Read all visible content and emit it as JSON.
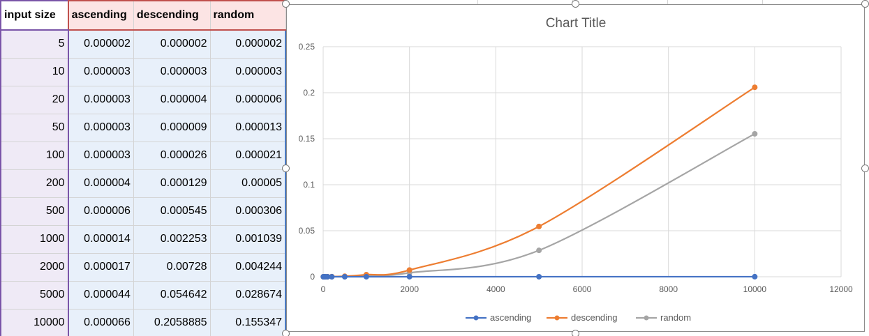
{
  "table": {
    "headers": [
      "input  size",
      "ascending",
      "descending",
      "random"
    ],
    "rows": [
      [
        "5",
        "0.000002",
        "0.000002",
        "0.000002"
      ],
      [
        "10",
        "0.000003",
        "0.000003",
        "0.000003"
      ],
      [
        "20",
        "0.000003",
        "0.000004",
        "0.000006"
      ],
      [
        "50",
        "0.000003",
        "0.000009",
        "0.000013"
      ],
      [
        "100",
        "0.000003",
        "0.000026",
        "0.000021"
      ],
      [
        "200",
        "0.000004",
        "0.000129",
        "0.00005"
      ],
      [
        "500",
        "0.000006",
        "0.000545",
        "0.000306"
      ],
      [
        "1000",
        "0.000014",
        "0.002253",
        "0.001039"
      ],
      [
        "2000",
        "0.000017",
        "0.00728",
        "0.004244"
      ],
      [
        "5000",
        "0.000044",
        "0.054642",
        "0.028674"
      ],
      [
        "10000",
        "0.000066",
        "0.2058885",
        "0.155347"
      ]
    ]
  },
  "chart_data": {
    "type": "scatter",
    "title": "Chart Title",
    "x": [
      5,
      10,
      20,
      50,
      100,
      200,
      500,
      1000,
      2000,
      5000,
      10000
    ],
    "series": [
      {
        "name": "ascending",
        "color": "#4472c4",
        "values": [
          2e-06,
          3e-06,
          3e-06,
          3e-06,
          3e-06,
          4e-06,
          6e-06,
          1.4e-05,
          1.7e-05,
          4.4e-05,
          6.6e-05
        ]
      },
      {
        "name": "descending",
        "color": "#ed7d31",
        "values": [
          2e-06,
          3e-06,
          4e-06,
          9e-06,
          2.6e-05,
          0.000129,
          0.000545,
          0.002253,
          0.00728,
          0.054642,
          0.2058885
        ]
      },
      {
        "name": "random",
        "color": "#a5a5a5",
        "values": [
          2e-06,
          3e-06,
          6e-06,
          1.3e-05,
          2.1e-05,
          5e-05,
          0.000306,
          0.001039,
          0.004244,
          0.028674,
          0.155347
        ]
      }
    ],
    "xlim": [
      0,
      12000
    ],
    "ylim": [
      0,
      0.25
    ],
    "xticks": [
      0,
      2000,
      4000,
      6000,
      8000,
      10000,
      12000
    ],
    "yticks": [
      0,
      0.05,
      0.1,
      0.15,
      0.2,
      0.25
    ],
    "xtick_labels": [
      "0",
      "2000",
      "4000",
      "6000",
      "8000",
      "10000",
      "12000"
    ],
    "ytick_labels": [
      "0",
      "0.05",
      "0.1",
      "0.15",
      "0.2",
      "0.25"
    ],
    "grid": true,
    "legend_position": "bottom",
    "smoothed_lines": true
  }
}
